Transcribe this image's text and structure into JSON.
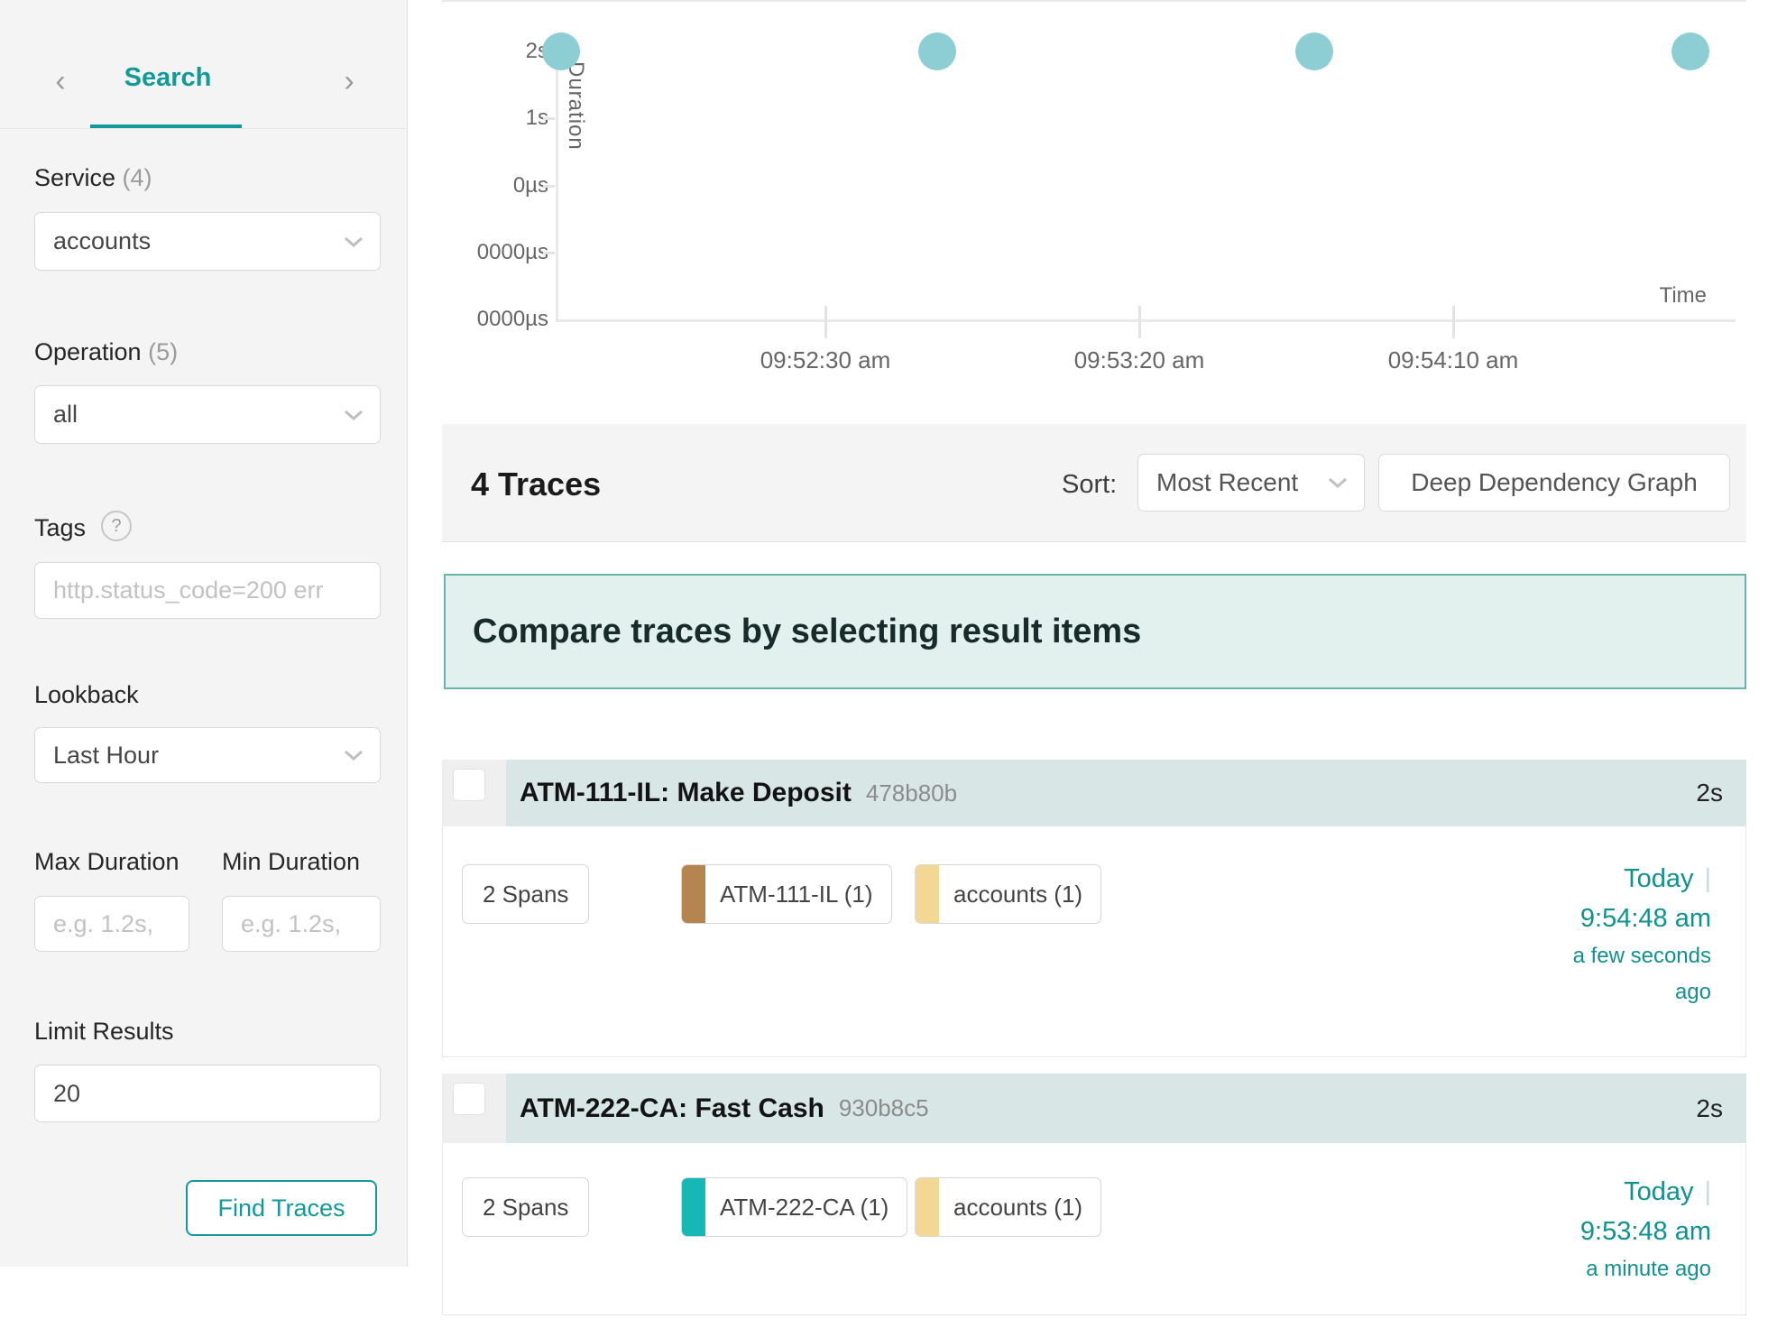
{
  "accent": "#12999a",
  "sidebar": {
    "nav": {
      "prev": "‹",
      "next": "›",
      "title": "Search"
    },
    "service": {
      "label": "Service",
      "count": "(4)",
      "value": "accounts"
    },
    "operation": {
      "label": "Operation",
      "count": "(5)",
      "value": "all"
    },
    "tags": {
      "label": "Tags",
      "help": "?",
      "placeholder": "http.status_code=200 err"
    },
    "lookback": {
      "label": "Lookback",
      "value": "Last Hour"
    },
    "max_duration": {
      "label": "Max Duration",
      "placeholder": "e.g. 1.2s,"
    },
    "min_duration": {
      "label": "Min Duration",
      "placeholder": "e.g. 1.2s,"
    },
    "limit": {
      "label": "Limit Results",
      "value": "20"
    },
    "find_button": "Find Traces"
  },
  "chart_data": {
    "type": "scatter",
    "xlabel": "Time",
    "ylabel": "Duration",
    "y_ticks": [
      "2s",
      "1s",
      "0µs",
      "0000µs",
      "0000µs"
    ],
    "x_ticks": [
      "09:52:30 am",
      "09:53:20 am",
      "09:54:10 am"
    ],
    "dot_color": "#8cced4",
    "points": [
      {
        "time": "09:51:48 am",
        "duration": "2s"
      },
      {
        "time": "09:52:48 am",
        "duration": "2s"
      },
      {
        "time": "09:53:48 am",
        "duration": "2s"
      },
      {
        "time": "09:54:48 am",
        "duration": "2s"
      }
    ]
  },
  "results_header": {
    "count_label": "4 Traces",
    "sort_label": "Sort:",
    "sort_value": "Most Recent",
    "ddg_button": "Deep Dependency Graph"
  },
  "banner": {
    "text": "Compare traces by selecting result items"
  },
  "traces": [
    {
      "title": "ATM-111-IL: Make Deposit",
      "trace_id": "478b80b",
      "duration": "2s",
      "spans": "2 Spans",
      "services": [
        {
          "name": "ATM-111-IL (1)",
          "color": "#b5854f"
        },
        {
          "name": "accounts (1)",
          "color": "#f3d795"
        }
      ],
      "date": "Today",
      "separator": "|",
      "time": "9:54:48 am",
      "relative": "a few seconds ago"
    },
    {
      "title": "ATM-222-CA: Fast Cash",
      "trace_id": "930b8c5",
      "duration": "2s",
      "spans": "2 Spans",
      "services": [
        {
          "name": "ATM-222-CA (1)",
          "color": "#16b8b5"
        },
        {
          "name": "accounts (1)",
          "color": "#f3d795"
        }
      ],
      "date": "Today",
      "separator": "|",
      "time": "9:53:48 am",
      "relative": "a minute ago"
    }
  ]
}
